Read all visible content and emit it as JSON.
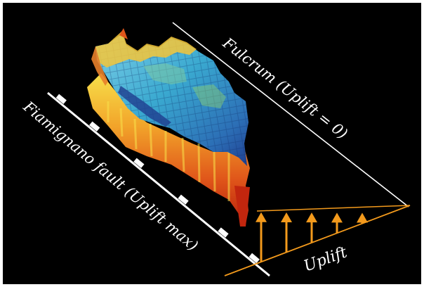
{
  "labels": {
    "fulcrum": "Fulcrum (Uplift = 0)",
    "fault": "Fiamignano fault (Uplift max)",
    "uplift": "Uplift"
  },
  "colors": {
    "background": "#000000",
    "lines": "#ffffff",
    "uplift_arrows": "#f39a1c",
    "terrain_high": "#f2c230",
    "terrain_mid": "#3aa9d0",
    "terrain_low": "#1f3d8f",
    "terrain_edge_hot": "#d83a14"
  },
  "icons": {
    "arrow": "up-arrow-icon",
    "fault_tick": "fault-tick-icon"
  }
}
